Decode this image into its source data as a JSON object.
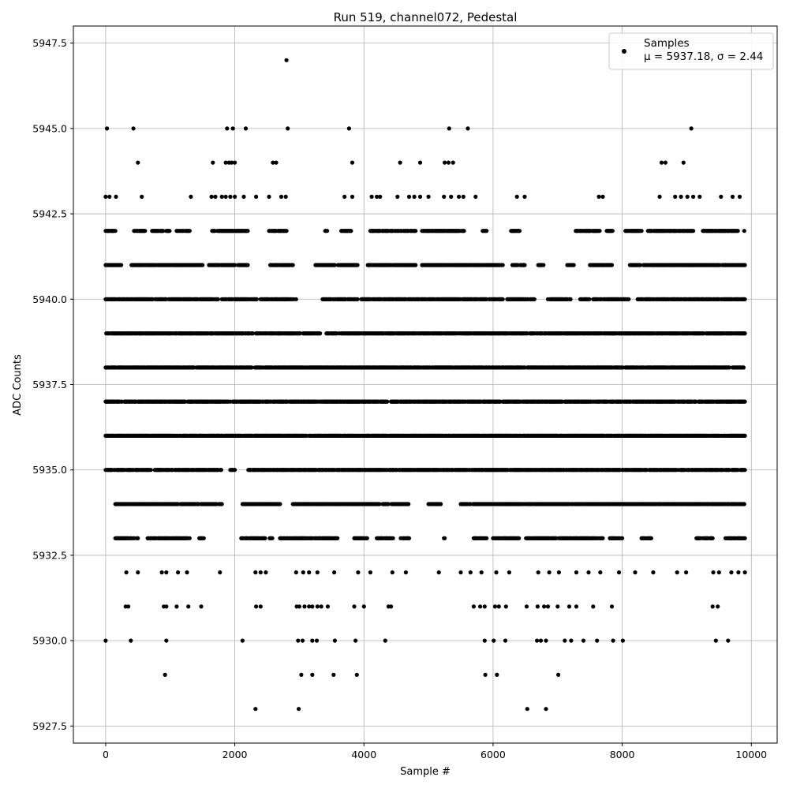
{
  "chart_data": {
    "type": "scatter",
    "title": "Run 519, channel072, Pedestal",
    "xlabel": "Sample #",
    "ylabel": "ADC Counts",
    "xlim": [
      -500,
      10400
    ],
    "ylim": [
      5927.0,
      5948.0
    ],
    "xticks": [
      0,
      2000,
      4000,
      6000,
      8000,
      10000
    ],
    "xtick_labels": [
      "0",
      "2000",
      "4000",
      "6000",
      "8000",
      "10000"
    ],
    "yticks": [
      5927.5,
      5930.0,
      5932.5,
      5935.0,
      5937.5,
      5940.0,
      5942.5,
      5945.0,
      5947.5
    ],
    "ytick_labels": [
      "5927.5",
      "5930.0",
      "5932.5",
      "5935.0",
      "5937.5",
      "5940.0",
      "5942.5",
      "5945.0",
      "5947.5"
    ],
    "grid": true,
    "legend": {
      "placement": "top-right",
      "label": "Samples",
      "mean_text": "μ = 5937.18, σ = 2.44"
    },
    "marker_color": "#000000",
    "series": [
      {
        "name": "Samples",
        "points": [
          [
            20,
            5945
          ],
          [
            430,
            5945
          ],
          [
            1880,
            5945
          ],
          [
            1970,
            5945
          ],
          [
            2170,
            5945
          ],
          [
            2820,
            5945
          ],
          [
            3770,
            5945
          ],
          [
            5320,
            5945
          ],
          [
            5610,
            5945
          ],
          [
            9070,
            5945
          ],
          [
            2800,
            5947
          ],
          [
            500,
            5944
          ],
          [
            1660,
            5944
          ],
          [
            1860,
            5944
          ],
          [
            1910,
            5944
          ],
          [
            1950,
            5944
          ],
          [
            2000,
            5944
          ],
          [
            2590,
            5944
          ],
          [
            2640,
            5944
          ],
          [
            3820,
            5944
          ],
          [
            4560,
            5944
          ],
          [
            4870,
            5944
          ],
          [
            5250,
            5944
          ],
          [
            5310,
            5944
          ],
          [
            5380,
            5944
          ],
          [
            8610,
            5944
          ],
          [
            8670,
            5944
          ],
          [
            8950,
            5944
          ],
          [
            0,
            5943
          ],
          [
            60,
            5943
          ],
          [
            160,
            5943
          ],
          [
            560,
            5943
          ],
          [
            1320,
            5943
          ],
          [
            1640,
            5943
          ],
          [
            1700,
            5943
          ],
          [
            1800,
            5943
          ],
          [
            1860,
            5943
          ],
          [
            1930,
            5943
          ],
          [
            2000,
            5943
          ],
          [
            2140,
            5943
          ],
          [
            2330,
            5943
          ],
          [
            2530,
            5943
          ],
          [
            2720,
            5943
          ],
          [
            2790,
            5943
          ],
          [
            3700,
            5943
          ],
          [
            3820,
            5943
          ],
          [
            4120,
            5943
          ],
          [
            4200,
            5943
          ],
          [
            4250,
            5943
          ],
          [
            4520,
            5943
          ],
          [
            4700,
            5943
          ],
          [
            4780,
            5943
          ],
          [
            4870,
            5943
          ],
          [
            5000,
            5943
          ],
          [
            5240,
            5943
          ],
          [
            5350,
            5943
          ],
          [
            5470,
            5943
          ],
          [
            5540,
            5943
          ],
          [
            5730,
            5943
          ],
          [
            6370,
            5943
          ],
          [
            6490,
            5943
          ],
          [
            7640,
            5943
          ],
          [
            7700,
            5943
          ],
          [
            8580,
            5943
          ],
          [
            8820,
            5943
          ],
          [
            8910,
            5943
          ],
          [
            9010,
            5943
          ],
          [
            9100,
            5943
          ],
          [
            9200,
            5943
          ],
          [
            9530,
            5943
          ],
          [
            9710,
            5943
          ],
          [
            9820,
            5943
          ],
          [
            0,
            5930
          ],
          [
            390,
            5930
          ],
          [
            940,
            5930
          ],
          [
            2120,
            5930
          ],
          [
            2980,
            5930
          ],
          [
            3050,
            5930
          ],
          [
            3200,
            5930
          ],
          [
            3270,
            5930
          ],
          [
            3550,
            5930
          ],
          [
            3870,
            5930
          ],
          [
            4330,
            5930
          ],
          [
            5870,
            5930
          ],
          [
            6010,
            5930
          ],
          [
            6190,
            5930
          ],
          [
            6680,
            5930
          ],
          [
            6740,
            5930
          ],
          [
            6820,
            5930
          ],
          [
            7110,
            5930
          ],
          [
            7210,
            5930
          ],
          [
            7400,
            5930
          ],
          [
            7610,
            5930
          ],
          [
            7860,
            5930
          ],
          [
            8010,
            5930
          ],
          [
            9450,
            5930
          ],
          [
            9640,
            5930
          ],
          [
            920,
            5929
          ],
          [
            3030,
            5929
          ],
          [
            3200,
            5929
          ],
          [
            3530,
            5929
          ],
          [
            3890,
            5929
          ],
          [
            5880,
            5929
          ],
          [
            6060,
            5929
          ],
          [
            7010,
            5929
          ],
          [
            2320,
            5928
          ],
          [
            2990,
            5928
          ],
          [
            6530,
            5928
          ],
          [
            6820,
            5928
          ],
          [
            310,
            5931
          ],
          [
            350,
            5931
          ],
          [
            900,
            5931
          ],
          [
            940,
            5931
          ],
          [
            1100,
            5931
          ],
          [
            1280,
            5931
          ],
          [
            1480,
            5931
          ],
          [
            2330,
            5931
          ],
          [
            2400,
            5931
          ],
          [
            2960,
            5931
          ],
          [
            3000,
            5931
          ],
          [
            3080,
            5931
          ],
          [
            3150,
            5931
          ],
          [
            3200,
            5931
          ],
          [
            3280,
            5931
          ],
          [
            3340,
            5931
          ],
          [
            3440,
            5931
          ],
          [
            3850,
            5931
          ],
          [
            4000,
            5931
          ],
          [
            4380,
            5931
          ],
          [
            4420,
            5931
          ],
          [
            5700,
            5931
          ],
          [
            5800,
            5931
          ],
          [
            5870,
            5931
          ],
          [
            6030,
            5931
          ],
          [
            6090,
            5931
          ],
          [
            6200,
            5931
          ],
          [
            6520,
            5931
          ],
          [
            6690,
            5931
          ],
          [
            6790,
            5931
          ],
          [
            6850,
            5931
          ],
          [
            7000,
            5931
          ],
          [
            7180,
            5931
          ],
          [
            7290,
            5931
          ],
          [
            7550,
            5931
          ],
          [
            7840,
            5931
          ],
          [
            9400,
            5931
          ],
          [
            9480,
            5931
          ],
          [
            320,
            5932
          ],
          [
            500,
            5932
          ],
          [
            870,
            5932
          ],
          [
            940,
            5932
          ],
          [
            1120,
            5932
          ],
          [
            1260,
            5932
          ],
          [
            1770,
            5932
          ],
          [
            2320,
            5932
          ],
          [
            2400,
            5932
          ],
          [
            2480,
            5932
          ],
          [
            2950,
            5932
          ],
          [
            3060,
            5932
          ],
          [
            3150,
            5932
          ],
          [
            3280,
            5932
          ],
          [
            3540,
            5932
          ],
          [
            3910,
            5932
          ],
          [
            4100,
            5932
          ],
          [
            4440,
            5932
          ],
          [
            4650,
            5932
          ],
          [
            5160,
            5932
          ],
          [
            5500,
            5932
          ],
          [
            5650,
            5932
          ],
          [
            5820,
            5932
          ],
          [
            6050,
            5932
          ],
          [
            6250,
            5932
          ],
          [
            6700,
            5932
          ],
          [
            6870,
            5932
          ],
          [
            7020,
            5932
          ],
          [
            7290,
            5932
          ],
          [
            7480,
            5932
          ],
          [
            7660,
            5932
          ],
          [
            7950,
            5932
          ],
          [
            8200,
            5932
          ],
          [
            8480,
            5932
          ],
          [
            8850,
            5932
          ],
          [
            8990,
            5932
          ],
          [
            9410,
            5932
          ],
          [
            9500,
            5932
          ],
          [
            9690,
            5932
          ],
          [
            9800,
            5932
          ],
          [
            9900,
            5932
          ]
        ],
        "band_levels": [
          5942,
          5941,
          5940,
          5939,
          5938,
          5937,
          5936,
          5935,
          5934,
          5933
        ],
        "bands": [
          {
            "y": 5942,
            "x_ranges": [
              [
                0,
                160
              ],
              [
                430,
                610
              ],
              [
                720,
                1000
              ],
              [
                1100,
                1300
              ],
              [
                1650,
                2200
              ],
              [
                2520,
                2800
              ],
              [
                3400,
                3450
              ],
              [
                3650,
                3800
              ],
              [
                4100,
                4800
              ],
              [
                4900,
                5550
              ],
              [
                5840,
                5900
              ],
              [
                6280,
                6420
              ],
              [
                7280,
                7650
              ],
              [
                7760,
                7850
              ],
              [
                8050,
                8300
              ],
              [
                8400,
                9100
              ],
              [
                9250,
                9800
              ],
              [
                9890,
                9900
              ]
            ]
          },
          {
            "y": 5941,
            "x_ranges": [
              [
                0,
                250
              ],
              [
                400,
                1500
              ],
              [
                1600,
                2200
              ],
              [
                2550,
                2900
              ],
              [
                3250,
                3550
              ],
              [
                3600,
                3900
              ],
              [
                4050,
                4800
              ],
              [
                4900,
                6150
              ],
              [
                6300,
                6500
              ],
              [
                6700,
                6780
              ],
              [
                7150,
                7250
              ],
              [
                7500,
                7850
              ],
              [
                8120,
                9900
              ]
            ]
          },
          {
            "y": 5940,
            "x_ranges": [
              [
                0,
                1750
              ],
              [
                1800,
                2350
              ],
              [
                2400,
                2950
              ],
              [
                3350,
                3900
              ],
              [
                3950,
                6150
              ],
              [
                6220,
                6650
              ],
              [
                6850,
                7200
              ],
              [
                7350,
                7500
              ],
              [
                7550,
                8100
              ],
              [
                8230,
                9900
              ]
            ]
          },
          {
            "y": 5939,
            "x_ranges": [
              [
                0,
                3020
              ],
              [
                3060,
                3320
              ],
              [
                3420,
                9900
              ]
            ]
          },
          {
            "y": 5938,
            "x_ranges": [
              [
                0,
                9900
              ]
            ]
          },
          {
            "y": 5937,
            "x_ranges": [
              [
                0,
                9900
              ]
            ]
          },
          {
            "y": 5936,
            "x_ranges": [
              [
                0,
                9900
              ]
            ]
          },
          {
            "y": 5935,
            "x_ranges": [
              [
                0,
                1800
              ],
              [
                1930,
                2000
              ],
              [
                2200,
                9900
              ]
            ]
          },
          {
            "y": 5934,
            "x_ranges": [
              [
                150,
                1800
              ],
              [
                2120,
                2700
              ],
              [
                2900,
                4700
              ],
              [
                5000,
                5200
              ],
              [
                5500,
                9900
              ]
            ]
          },
          {
            "y": 5933,
            "x_ranges": [
              [
                150,
                500
              ],
              [
                650,
                1300
              ],
              [
                1450,
                1520
              ],
              [
                2100,
                2480
              ],
              [
                2540,
                2580
              ],
              [
                2700,
                3600
              ],
              [
                3850,
                4050
              ],
              [
                4200,
                4450
              ],
              [
                4570,
                4700
              ],
              [
                5240,
                5260
              ],
              [
                5700,
                5900
              ],
              [
                6000,
                6400
              ],
              [
                6500,
                7700
              ],
              [
                7800,
                8000
              ],
              [
                8300,
                8450
              ],
              [
                9150,
                9400
              ],
              [
                9600,
                9900
              ]
            ]
          }
        ]
      }
    ]
  }
}
